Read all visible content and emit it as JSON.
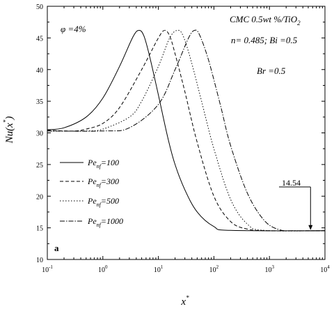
{
  "chart_data": {
    "type": "line",
    "xscale": "log",
    "xlim": [
      0.1,
      10000
    ],
    "ylim": [
      10,
      50
    ],
    "xlabel": "x",
    "xlabel_sup": "*",
    "ylabel": "Nu(x",
    "ylabel_sup": "*",
    "ylabel_tail": ")",
    "x_ticks": [
      0.1,
      1,
      10,
      100,
      1000,
      10000
    ],
    "x_tick_labels": [
      {
        "base": "10",
        "exp": "-1"
      },
      {
        "base": "10",
        "exp": "0"
      },
      {
        "base": "10",
        "exp": "1"
      },
      {
        "base": "10",
        "exp": "2"
      },
      {
        "base": "10",
        "exp": "3"
      },
      {
        "base": "10",
        "exp": "4"
      }
    ],
    "y_ticks": [
      10,
      15,
      20,
      25,
      30,
      35,
      40,
      45,
      50
    ],
    "y_tick_labels": [
      "10",
      "15",
      "20",
      "25",
      "30",
      "35",
      "40",
      "45",
      "50"
    ],
    "annotations": {
      "phi": "φ =4%",
      "material_main": "CMC 0.5wt %/TiO",
      "material_sub": "2",
      "params": "n= 0.485; Bi =0.5",
      "br": "Br =0.5",
      "panel": "a",
      "asymptote": "14.54",
      "asymptote_value": 14.54,
      "asymptote_x": 5500
    },
    "legend_position": "left",
    "series": [
      {
        "name": "Pe",
        "sub": "nf",
        "value": "=100",
        "dash": "",
        "pts": [
          [
            0.1,
            30.5
          ],
          [
            0.2,
            30.8
          ],
          [
            0.5,
            32.5
          ],
          [
            1,
            35.5
          ],
          [
            2,
            40.5
          ],
          [
            3.5,
            45.2
          ],
          [
            4.5,
            46.2
          ],
          [
            5.5,
            45.3
          ],
          [
            7,
            42
          ],
          [
            10,
            36
          ],
          [
            15,
            29
          ],
          [
            20,
            25
          ],
          [
            30,
            21
          ],
          [
            50,
            17.5
          ],
          [
            100,
            15.2
          ],
          [
            200,
            14.6
          ],
          [
            10000,
            14.54
          ]
        ]
      },
      {
        "name": "Pe",
        "sub": "nf",
        "value": "=300",
        "dash": "5,3",
        "pts": [
          [
            0.1,
            30.4
          ],
          [
            0.3,
            30.3
          ],
          [
            0.5,
            30.6
          ],
          [
            1,
            31.5
          ],
          [
            2,
            34
          ],
          [
            5,
            40
          ],
          [
            10,
            45
          ],
          [
            13,
            46.2
          ],
          [
            16,
            45.3
          ],
          [
            20,
            42.5
          ],
          [
            30,
            36.5
          ],
          [
            50,
            28.5
          ],
          [
            100,
            20
          ],
          [
            200,
            16
          ],
          [
            400,
            14.8
          ],
          [
            1000,
            14.54
          ],
          [
            10000,
            14.54
          ]
        ]
      },
      {
        "name": "Pe",
        "sub": "nf",
        "value": "=500",
        "dash": "1.5,2.5",
        "pts": [
          [
            0.1,
            30.3
          ],
          [
            0.5,
            30.3
          ],
          [
            1,
            30.6
          ],
          [
            3,
            32.5
          ],
          [
            5,
            35
          ],
          [
            10,
            40.5
          ],
          [
            16,
            45
          ],
          [
            22,
            46.2
          ],
          [
            28,
            45.3
          ],
          [
            40,
            41
          ],
          [
            60,
            35
          ],
          [
            100,
            27.5
          ],
          [
            200,
            19.5
          ],
          [
            400,
            15.6
          ],
          [
            800,
            14.6
          ],
          [
            10000,
            14.54
          ]
        ]
      },
      {
        "name": "Pe",
        "sub": "nf",
        "value": "=1000",
        "dash": "7,2,1.5,2",
        "pts": [
          [
            0.1,
            30.3
          ],
          [
            1,
            30.3
          ],
          [
            3,
            30.8
          ],
          [
            10,
            34.5
          ],
          [
            20,
            40
          ],
          [
            35,
            45
          ],
          [
            45,
            46.2
          ],
          [
            55,
            45.5
          ],
          [
            80,
            41.5
          ],
          [
            130,
            34.5
          ],
          [
            200,
            28
          ],
          [
            400,
            20.5
          ],
          [
            800,
            16.2
          ],
          [
            1500,
            14.7
          ],
          [
            3000,
            14.54
          ],
          [
            10000,
            14.54
          ]
        ]
      }
    ]
  }
}
